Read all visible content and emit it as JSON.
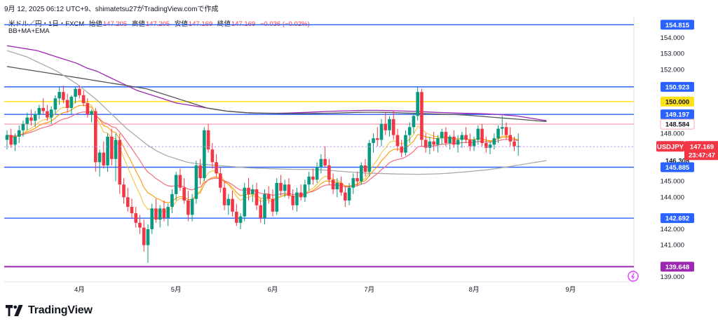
{
  "header": {
    "text": "9月 12, 2025 06:12 UTC+9、shimatetsu27がTradingView.comで作成"
  },
  "symbol_line": {
    "name": "米ドル／円・1日・FXCM",
    "open_label": "始値",
    "open": "147.205",
    "high_label": "高値",
    "high": "147.205",
    "low_label": "安値",
    "low": "147.169",
    "close_label": "終値",
    "close": "147.169",
    "change": "−0.036 (−0.02%)"
  },
  "indicator_label": "BB+MA+EMA",
  "brand": {
    "name": "TradingView"
  },
  "colors": {
    "up": "#089981",
    "down": "#f23645",
    "blue_line": "#2962ff",
    "yellow_line": "#ffe11a",
    "pink_line": "#f7a8b8",
    "purple_line": "#9c27b0",
    "bb_upper": "#9c27b0",
    "bb_mid": "#555555",
    "bb_lower": "#aaaaaa",
    "ma_slow": "#f26d7d",
    "ma_fast": "#ff9800",
    "ema_yellow": "#f4c542"
  },
  "chart_data": {
    "type": "candlestick",
    "symbol": "USDJPY",
    "y_range": [
      138.7,
      155.4
    ],
    "y_ticks": [
      {
        "value": 154.0,
        "label": "154.000"
      },
      {
        "value": 153.0,
        "label": "153.000"
      },
      {
        "value": 152.0,
        "label": "152.000"
      },
      {
        "value": 148.0,
        "label": "148.000"
      },
      {
        "value": 145.0,
        "label": "145.000"
      },
      {
        "value": 144.0,
        "label": "144.000"
      },
      {
        "value": 142.0,
        "label": "142.000"
      },
      {
        "value": 141.0,
        "label": "141.000"
      },
      {
        "value": 139.0,
        "label": "139.000"
      }
    ],
    "x_labels": [
      {
        "i": 18,
        "label": "4月"
      },
      {
        "i": 42,
        "label": "5月"
      },
      {
        "i": 66,
        "label": "6月"
      },
      {
        "i": 90,
        "label": "7月"
      },
      {
        "i": 116,
        "label": "8月"
      },
      {
        "i": 140,
        "label": "9月"
      }
    ],
    "n_slots": 156,
    "horizontal_lines": [
      {
        "value": 154.815,
        "label": "154.815",
        "kind": "blue"
      },
      {
        "value": 150.923,
        "label": "150.923",
        "kind": "blue"
      },
      {
        "value": 150.0,
        "label": "150.000",
        "kind": "yellow"
      },
      {
        "value": 149.197,
        "label": "149.197",
        "kind": "blue"
      },
      {
        "value": 148.584,
        "label": "148.584",
        "kind": "pink"
      },
      {
        "value": 146.308,
        "label": "146.308",
        "kind": "dark"
      },
      {
        "value": 145.885,
        "label": "145.885",
        "kind": "blue"
      },
      {
        "value": 142.692,
        "label": "142.692",
        "kind": "blue"
      },
      {
        "value": 139.648,
        "label": "139.648",
        "kind": "purple"
      }
    ],
    "price_tag": {
      "label": "USDJPY",
      "price": "147.169",
      "countdown": "23:47:47",
      "value": 147.169
    },
    "candles": [
      [
        147.6,
        148.2,
        147.0,
        147.9
      ],
      [
        147.9,
        148.3,
        147.1,
        147.3
      ],
      [
        147.3,
        148.0,
        146.9,
        147.8
      ],
      [
        147.8,
        148.5,
        147.4,
        148.2
      ],
      [
        148.2,
        148.8,
        147.8,
        148.6
      ],
      [
        148.6,
        149.3,
        148.2,
        149.0
      ],
      [
        149.0,
        149.5,
        148.5,
        148.8
      ],
      [
        148.8,
        149.4,
        148.4,
        149.2
      ],
      [
        149.2,
        149.8,
        148.9,
        149.6
      ],
      [
        149.6,
        150.2,
        149.2,
        149.4
      ],
      [
        149.4,
        149.8,
        148.8,
        149.0
      ],
      [
        149.0,
        149.7,
        148.6,
        149.5
      ],
      [
        149.5,
        150.4,
        149.2,
        150.2
      ],
      [
        150.2,
        150.9,
        149.8,
        150.6
      ],
      [
        150.6,
        151.0,
        149.9,
        150.1
      ],
      [
        150.1,
        150.5,
        149.3,
        149.6
      ],
      [
        149.6,
        150.4,
        149.2,
        150.3
      ],
      [
        150.3,
        150.9,
        149.9,
        150.8
      ],
      [
        150.8,
        151.0,
        150.2,
        150.4
      ],
      [
        150.4,
        150.7,
        149.7,
        149.9
      ],
      [
        149.9,
        150.2,
        149.0,
        149.2
      ],
      [
        149.2,
        149.5,
        148.7,
        149.4
      ],
      [
        149.4,
        149.6,
        145.6,
        146.2
      ],
      [
        146.2,
        147.0,
        145.3,
        146.8
      ],
      [
        146.8,
        147.5,
        145.8,
        146.0
      ],
      [
        146.0,
        148.0,
        145.6,
        147.8
      ],
      [
        147.8,
        148.3,
        146.0,
        146.4
      ],
      [
        146.4,
        148.0,
        145.0,
        147.6
      ],
      [
        147.6,
        148.0,
        144.2,
        144.8
      ],
      [
        144.8,
        145.2,
        143.6,
        144.0
      ],
      [
        144.0,
        144.6,
        143.1,
        143.4
      ],
      [
        143.4,
        143.9,
        142.7,
        143.0
      ],
      [
        143.0,
        143.4,
        142.1,
        142.4
      ],
      [
        142.4,
        142.9,
        141.7,
        142.1
      ],
      [
        142.1,
        142.6,
        140.6,
        141.0
      ],
      [
        141.0,
        142.3,
        139.9,
        142.0
      ],
      [
        142.0,
        143.6,
        141.7,
        143.3
      ],
      [
        143.3,
        143.9,
        142.4,
        142.6
      ],
      [
        142.6,
        143.5,
        142.1,
        143.3
      ],
      [
        143.3,
        143.8,
        142.5,
        142.7
      ],
      [
        142.7,
        143.6,
        142.2,
        143.4
      ],
      [
        143.4,
        144.5,
        143.0,
        144.2
      ],
      [
        144.2,
        145.6,
        143.8,
        145.4
      ],
      [
        145.4,
        145.8,
        144.4,
        144.6
      ],
      [
        144.6,
        145.2,
        143.6,
        143.8
      ],
      [
        143.8,
        144.4,
        142.5,
        142.9
      ],
      [
        142.9,
        144.2,
        142.5,
        143.9
      ],
      [
        143.9,
        146.3,
        143.6,
        146.0
      ],
      [
        146.0,
        146.4,
        144.8,
        145.2
      ],
      [
        145.2,
        148.4,
        145.0,
        148.2
      ],
      [
        148.2,
        148.6,
        146.8,
        147.0
      ],
      [
        147.0,
        147.4,
        145.8,
        146.2
      ],
      [
        146.2,
        146.7,
        145.3,
        145.5
      ],
      [
        145.5,
        145.9,
        144.3,
        144.6
      ],
      [
        144.6,
        145.0,
        143.2,
        143.5
      ],
      [
        143.5,
        144.2,
        142.9,
        143.9
      ],
      [
        143.9,
        144.4,
        142.8,
        143.1
      ],
      [
        143.1,
        143.6,
        142.2,
        142.4
      ],
      [
        142.4,
        143.0,
        142.0,
        142.8
      ],
      [
        142.8,
        144.9,
        142.5,
        144.6
      ],
      [
        144.6,
        145.2,
        143.8,
        144.2
      ],
      [
        144.2,
        144.8,
        143.7,
        144.5
      ],
      [
        144.5,
        144.9,
        143.2,
        143.5
      ],
      [
        143.5,
        143.9,
        142.4,
        142.7
      ],
      [
        142.7,
        144.5,
        142.3,
        144.2
      ],
      [
        144.2,
        144.7,
        143.6,
        143.9
      ],
      [
        143.9,
        144.5,
        142.8,
        143.1
      ],
      [
        143.1,
        145.2,
        142.9,
        144.9
      ],
      [
        144.9,
        145.4,
        144.1,
        144.4
      ],
      [
        144.4,
        145.1,
        144.0,
        144.8
      ],
      [
        144.8,
        145.2,
        143.9,
        144.1
      ],
      [
        144.1,
        144.5,
        143.2,
        143.5
      ],
      [
        143.5,
        144.6,
        143.1,
        144.3
      ],
      [
        144.3,
        144.8,
        143.8,
        144.0
      ],
      [
        144.0,
        145.1,
        143.7,
        144.8
      ],
      [
        144.8,
        145.6,
        144.4,
        145.3
      ],
      [
        145.3,
        145.8,
        144.8,
        145.1
      ],
      [
        145.1,
        146.2,
        144.9,
        145.9
      ],
      [
        145.9,
        146.7,
        145.5,
        146.4
      ],
      [
        146.4,
        147.2,
        145.9,
        146.0
      ],
      [
        146.0,
        146.4,
        144.8,
        145.1
      ],
      [
        145.1,
        145.5,
        144.2,
        144.5
      ],
      [
        144.5,
        145.2,
        144.0,
        144.9
      ],
      [
        144.9,
        145.3,
        144.1,
        144.3
      ],
      [
        144.3,
        144.7,
        143.4,
        143.8
      ],
      [
        143.8,
        144.9,
        143.5,
        144.6
      ],
      [
        144.6,
        145.5,
        144.2,
        145.2
      ],
      [
        145.2,
        145.6,
        144.7,
        145.0
      ],
      [
        145.0,
        146.2,
        144.8,
        146.0
      ],
      [
        146.0,
        146.4,
        145.3,
        145.6
      ],
      [
        145.6,
        147.6,
        145.3,
        147.4
      ],
      [
        147.4,
        148.0,
        146.8,
        147.7
      ],
      [
        147.7,
        148.4,
        147.2,
        147.6
      ],
      [
        147.6,
        148.9,
        147.2,
        148.6
      ],
      [
        148.6,
        149.3,
        147.9,
        148.2
      ],
      [
        148.2,
        149.1,
        147.8,
        148.9
      ],
      [
        148.9,
        149.4,
        147.6,
        147.9
      ],
      [
        147.9,
        148.3,
        146.9,
        147.2
      ],
      [
        147.2,
        147.6,
        146.5,
        146.8
      ],
      [
        146.8,
        148.2,
        146.6,
        147.9
      ],
      [
        147.9,
        148.7,
        147.4,
        148.4
      ],
      [
        148.4,
        149.3,
        148.0,
        149.1
      ],
      [
        149.1,
        150.9,
        148.8,
        150.6
      ],
      [
        150.6,
        150.8,
        147.2,
        147.6
      ],
      [
        147.6,
        148.0,
        146.8,
        147.1
      ],
      [
        147.1,
        147.8,
        146.7,
        147.5
      ],
      [
        147.5,
        148.1,
        146.9,
        147.3
      ],
      [
        147.3,
        147.9,
        146.8,
        147.7
      ],
      [
        147.7,
        148.3,
        147.3,
        148.1
      ],
      [
        148.1,
        148.4,
        147.2,
        147.4
      ],
      [
        147.4,
        147.9,
        147.0,
        147.8
      ],
      [
        147.8,
        148.2,
        147.1,
        147.3
      ],
      [
        147.3,
        147.9,
        146.8,
        147.6
      ],
      [
        147.6,
        148.1,
        147.1,
        147.9
      ],
      [
        147.9,
        148.4,
        147.4,
        147.6
      ],
      [
        147.6,
        148.0,
        146.9,
        147.2
      ],
      [
        147.2,
        147.8,
        146.9,
        147.6
      ],
      [
        147.6,
        148.5,
        147.3,
        148.3
      ],
      [
        148.3,
        148.6,
        147.2,
        147.4
      ],
      [
        147.4,
        147.8,
        146.8,
        147.1
      ],
      [
        147.1,
        147.5,
        146.7,
        147.3
      ],
      [
        147.3,
        148.0,
        147.0,
        147.7
      ],
      [
        147.7,
        148.5,
        147.4,
        148.3
      ],
      [
        148.3,
        149.1,
        147.9,
        148.4
      ],
      [
        148.4,
        148.7,
        147.6,
        147.9
      ],
      [
        147.9,
        148.4,
        147.2,
        147.5
      ],
      [
        147.5,
        147.8,
        146.9,
        147.2
      ],
      [
        147.2,
        148.0,
        146.6,
        147.205
      ]
    ],
    "bb_upper": [
      153.5,
      153.4,
      153.3,
      153.2,
      153.0,
      152.8,
      152.6,
      152.4,
      152.1,
      151.9,
      151.6,
      151.3,
      151.0,
      150.7,
      150.5,
      150.3,
      150.1,
      149.9,
      149.8,
      149.7,
      149.6,
      149.5,
      149.4,
      149.35,
      149.3,
      149.28,
      149.27,
      149.27,
      149.28,
      149.3,
      149.32,
      149.35,
      149.38,
      149.4,
      149.42,
      149.44,
      149.45,
      149.45,
      149.44,
      149.42,
      149.4,
      149.38,
      149.35,
      149.32,
      149.3,
      149.28,
      149.26,
      149.25,
      149.23,
      149.2,
      149.15,
      149.1,
      149.0,
      148.9,
      148.8
    ],
    "bb_mid": [
      152.2,
      152.1,
      152.0,
      151.9,
      151.8,
      151.7,
      151.6,
      151.5,
      151.4,
      151.3,
      151.2,
      151.1,
      151.0,
      150.9,
      150.8,
      150.6,
      150.4,
      150.2,
      150.0,
      149.8,
      149.6,
      149.5,
      149.4,
      149.35,
      149.3,
      149.28,
      149.27,
      149.26,
      149.25,
      149.25,
      149.25,
      149.26,
      149.27,
      149.28,
      149.3,
      149.32,
      149.33,
      149.33,
      149.32,
      149.3,
      149.28,
      149.26,
      149.24,
      149.22,
      149.2,
      149.18,
      149.15,
      149.1,
      149.05,
      149.0,
      148.95,
      148.9,
      148.85,
      148.8,
      148.75
    ],
    "bb_lower": [
      153.2,
      153.0,
      152.8,
      152.5,
      152.2,
      151.9,
      151.5,
      151.1,
      150.6,
      150.1,
      149.5,
      148.9,
      148.3,
      147.8,
      147.3,
      146.9,
      146.6,
      146.4,
      146.2,
      146.1,
      146.05,
      146.0,
      145.95,
      145.9,
      145.85,
      145.82,
      145.8,
      145.78,
      145.76,
      145.75,
      145.75,
      145.73,
      145.7,
      145.65,
      145.6,
      145.56,
      145.52,
      145.5,
      145.48,
      145.46,
      145.45,
      145.44,
      145.45,
      145.47,
      145.5,
      145.55,
      145.6,
      145.66,
      145.72,
      145.8,
      145.9,
      146.0,
      146.1,
      146.2,
      146.3
    ]
  }
}
